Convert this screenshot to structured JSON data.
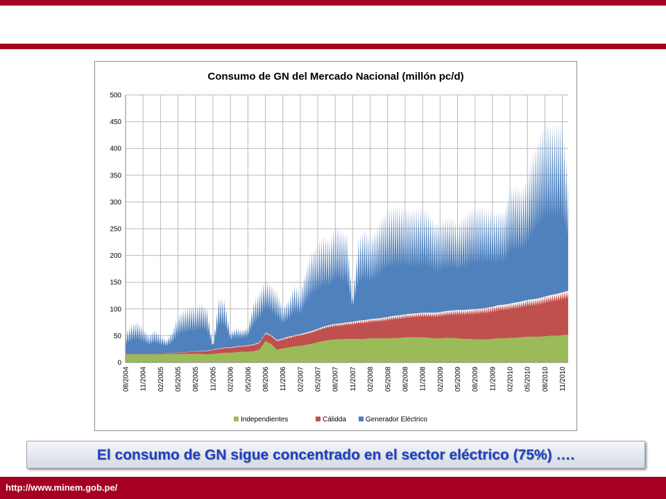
{
  "slide": {
    "caption": "El consumo de GN sigue concentrado en el sector eléctrico (75%)   ….",
    "footer_url": "http://www.minem.gob.pe/",
    "brand_color": "#a50021",
    "caption_color": "#1f3fbf"
  },
  "chart_data": {
    "type": "area",
    "stacked": true,
    "title": "Consumo de GN del Mercado Nacional  (millón pc/d)",
    "xlabel": "",
    "ylabel": "",
    "ylim": [
      0,
      500
    ],
    "yticks": [
      0,
      50,
      100,
      150,
      200,
      250,
      300,
      350,
      400,
      450,
      500
    ],
    "xticks": [
      "08/2004",
      "11/2004",
      "02/2005",
      "05/2005",
      "08/2005",
      "11/2005",
      "02/2006",
      "05/2006",
      "08/2006",
      "11/2006",
      "02/2007",
      "05/2007",
      "08/2007",
      "11/2007",
      "02/2008",
      "05/2008",
      "08/2008",
      "11/2008",
      "02/2009",
      "05/2009",
      "08/2009",
      "11/2009",
      "02/2010",
      "05/2010",
      "08/2010",
      "11/2010"
    ],
    "grid": true,
    "legend_position": "bottom",
    "x": [
      "08/2004",
      "09/2004",
      "10/2004",
      "11/2004",
      "12/2004",
      "01/2005",
      "02/2005",
      "03/2005",
      "04/2005",
      "05/2005",
      "06/2005",
      "07/2005",
      "08/2005",
      "09/2005",
      "10/2005",
      "11/2005",
      "12/2005",
      "01/2006",
      "02/2006",
      "03/2006",
      "04/2006",
      "05/2006",
      "06/2006",
      "07/2006",
      "08/2006",
      "09/2006",
      "10/2006",
      "11/2006",
      "12/2006",
      "01/2007",
      "02/2007",
      "03/2007",
      "04/2007",
      "05/2007",
      "06/2007",
      "07/2007",
      "08/2007",
      "09/2007",
      "10/2007",
      "11/2007",
      "12/2007",
      "01/2008",
      "02/2008",
      "03/2008",
      "04/2008",
      "05/2008",
      "06/2008",
      "07/2008",
      "08/2008",
      "09/2008",
      "10/2008",
      "11/2008",
      "12/2008",
      "01/2009",
      "02/2009",
      "03/2009",
      "04/2009",
      "05/2009",
      "06/2009",
      "07/2009",
      "08/2009",
      "09/2009",
      "10/2009",
      "11/2009",
      "12/2009",
      "01/2010",
      "02/2010",
      "03/2010",
      "04/2010",
      "05/2010",
      "06/2010",
      "07/2010",
      "08/2010",
      "09/2010",
      "10/2010",
      "11/2010",
      "12/2010"
    ],
    "series": [
      {
        "name": "Independientes",
        "color": "#9bbb59",
        "values": [
          15,
          15,
          15,
          15,
          15,
          15,
          15,
          16,
          16,
          16,
          16,
          16,
          16,
          16,
          15,
          16,
          17,
          18,
          18,
          19,
          20,
          20,
          21,
          24,
          40,
          34,
          24,
          26,
          28,
          30,
          31,
          33,
          35,
          38,
          40,
          42,
          43,
          43,
          44,
          44,
          44,
          44,
          45,
          45,
          45,
          45,
          46,
          46,
          47,
          47,
          47,
          47,
          46,
          45,
          45,
          46,
          46,
          45,
          44,
          44,
          43,
          43,
          43,
          44,
          45,
          45,
          46,
          46,
          47,
          48,
          48,
          48,
          49,
          50,
          50,
          51,
          52
        ]
      },
      {
        "name": "Cálidda",
        "color": "#c0504d",
        "values": [
          1,
          1,
          1,
          1,
          1,
          1,
          2,
          2,
          2,
          3,
          3,
          4,
          5,
          6,
          7,
          8,
          9,
          10,
          10,
          11,
          11,
          12,
          13,
          14,
          16,
          17,
          18,
          19,
          20,
          21,
          22,
          23,
          24,
          25,
          27,
          28,
          29,
          30,
          31,
          32,
          34,
          35,
          36,
          37,
          38,
          40,
          41,
          42,
          43,
          44,
          45,
          46,
          47,
          48,
          49,
          50,
          51,
          53,
          54,
          55,
          57,
          58,
          59,
          60,
          62,
          63,
          64,
          66,
          67,
          69,
          70,
          72,
          74,
          76,
          78,
          80,
          82
        ]
      },
      {
        "name": "Generador Eléctrico",
        "color": "#4f81bd",
        "values": [
          40,
          55,
          60,
          50,
          35,
          45,
          35,
          25,
          40,
          70,
          80,
          85,
          85,
          90,
          80,
          10,
          95,
          90,
          30,
          35,
          30,
          35,
          80,
          95,
          100,
          95,
          90,
          60,
          70,
          95,
          80,
          120,
          150,
          160,
          170,
          160,
          185,
          175,
          165,
          50,
          155,
          170,
          155,
          165,
          190,
          200,
          205,
          205,
          200,
          195,
          195,
          195,
          190,
          170,
          170,
          175,
          175,
          165,
          175,
          185,
          190,
          190,
          185,
          180,
          175,
          175,
          215,
          220,
          210,
          230,
          275,
          300,
          330,
          320,
          320,
          315,
          210
        ]
      }
    ]
  }
}
